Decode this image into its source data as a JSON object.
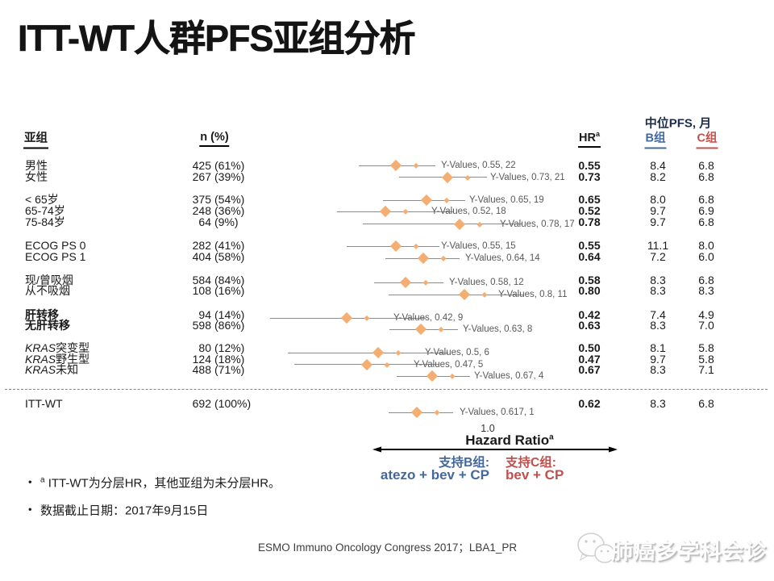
{
  "title": "ITT-WT人群PFS亚组分析",
  "table": {
    "median_header": "中位PFS, 月",
    "col_subgroup": "亚组",
    "col_n": "n (%)",
    "col_hr": "HR",
    "col_hr_sup": "a",
    "col_b": "B组",
    "col_c": "C组",
    "groups": [
      {
        "rows": [
          {
            "label": "男性",
            "n": "425",
            "pct": "(61%)",
            "hr": "0.55",
            "b": "8.4",
            "c": "6.8"
          },
          {
            "label": "女性",
            "n": "267",
            "pct": "(39%)",
            "hr": "0.73",
            "b": "8.2",
            "c": "6.8"
          }
        ]
      },
      {
        "rows": [
          {
            "label": "< 65岁",
            "n": "375",
            "pct": "(54%)",
            "hr": "0.65",
            "b": "8.0",
            "c": "6.8"
          },
          {
            "label": "65-74岁",
            "n": "248",
            "pct": "(36%)",
            "hr": "0.52",
            "b": "9.7",
            "c": "6.9"
          },
          {
            "label": "75-84岁",
            "n": "64",
            "pct": "(9%)",
            "hr": "0.78",
            "b": "9.7",
            "c": "6.8"
          }
        ]
      },
      {
        "rows": [
          {
            "label": "ECOG PS 0",
            "n": "282",
            "pct": "(41%)",
            "hr": "0.55",
            "b": "11.1",
            "c": "8.0"
          },
          {
            "label": "ECOG PS 1",
            "n": "404",
            "pct": "(58%)",
            "hr": "0.64",
            "b": "7.2",
            "c": "6.0"
          }
        ]
      },
      {
        "rows": [
          {
            "label": "现/曾吸烟",
            "n": "584",
            "pct": "(84%)",
            "hr": "0.58",
            "b": "8.3",
            "c": "6.8"
          },
          {
            "label": "从不吸烟",
            "n": "108",
            "pct": "(16%)",
            "hr": "0.80",
            "b": "8.3",
            "c": "8.3"
          }
        ]
      },
      {
        "rows": [
          {
            "label": "肝转移",
            "bold": true,
            "n": "94",
            "pct": "(14%)",
            "hr": "0.42",
            "b": "7.4",
            "c": "4.9"
          },
          {
            "label": "无肝转移",
            "bold": true,
            "n": "598",
            "pct": "(86%)",
            "hr": "0.63",
            "b": "8.3",
            "c": "7.0"
          }
        ]
      },
      {
        "rows": [
          {
            "italic_prefix": "KRAS",
            "label": "突变型",
            "n": "80",
            "pct": "(12%)",
            "hr": "0.50",
            "b": "8.1",
            "c": "5.8"
          },
          {
            "italic_prefix": "KRAS",
            "label": "野生型",
            "n": "124",
            "pct": "(18%)",
            "hr": "0.47",
            "b": "9.7",
            "c": "5.8"
          },
          {
            "italic_prefix": "KRAS",
            "label": "未知",
            "n": "488",
            "pct": "(71%)",
            "hr": "0.67",
            "b": "8.3",
            "c": "7.1"
          }
        ]
      }
    ],
    "itt_row": {
      "label": "ITT-WT",
      "n": "692",
      "pct": "(100%)",
      "hr": "0.62",
      "b": "8.3",
      "c": "6.8"
    }
  },
  "chart_data": {
    "type": "scatter",
    "title": "",
    "xlabel": "Hazard Ratio",
    "x_scale": "log",
    "x_tick_labels": [
      "1.0"
    ],
    "marker": "diamond",
    "marker_color": "#F4AE72",
    "series": [
      {
        "name": "Y-Values",
        "points": [
          [
            0.55,
            22
          ],
          [
            0.73,
            21
          ],
          [
            0.65,
            19
          ],
          [
            0.52,
            18
          ],
          [
            0.78,
            17
          ],
          [
            0.55,
            15
          ],
          [
            0.64,
            14
          ],
          [
            0.58,
            12
          ],
          [
            0.8,
            11
          ],
          [
            0.42,
            9
          ],
          [
            0.63,
            8
          ],
          [
            0.5,
            6
          ],
          [
            0.47,
            5
          ],
          [
            0.67,
            4
          ],
          [
            0.617,
            1
          ]
        ]
      }
    ]
  },
  "axis": {
    "tick": "1.0",
    "label": "Hazard Ratio",
    "label_sup": "a",
    "left_title": "支持B组:",
    "left_sub": "atezo + bev + CP",
    "right_title": "支持C组:",
    "right_sub": "bev + CP",
    "left_color": "#44689C",
    "right_color": "#C0504D"
  },
  "footnotes": [
    {
      "sup": "a",
      "text": " ITT-WT为分层HR，其他亚组为未分层HR。"
    },
    {
      "sup": "",
      "text": "数据截止日期：2017年9月15日"
    }
  ],
  "footer": {
    "citation": "ESMO Immuno Oncology Congress 2017；LBA1_PR",
    "watermark": "肺癌多学科会诊"
  }
}
